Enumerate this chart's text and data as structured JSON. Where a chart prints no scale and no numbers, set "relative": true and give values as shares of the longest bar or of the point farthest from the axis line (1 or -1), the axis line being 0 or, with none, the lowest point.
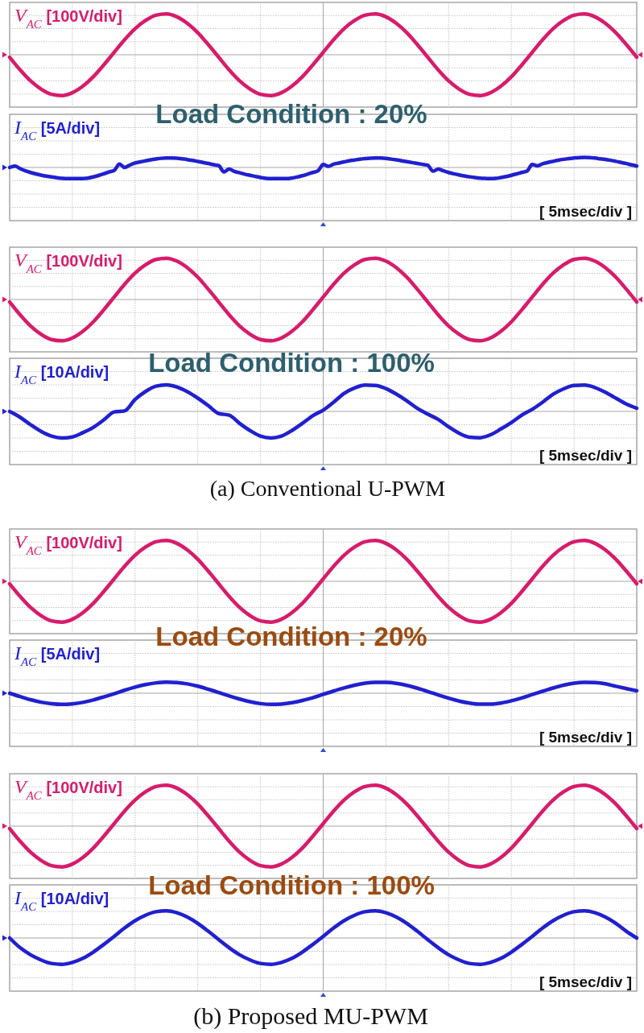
{
  "chart_data": [
    {
      "type": "line",
      "relative": true,
      "grid": true,
      "categories": [
        null,
        null,
        null,
        null,
        null,
        null,
        null,
        null,
        null,
        null,
        null,
        null,
        null,
        null,
        null,
        null,
        null,
        null,
        null,
        null,
        null,
        null,
        null,
        null,
        null,
        null,
        null,
        null,
        null,
        null,
        null,
        null,
        null,
        null,
        null,
        null,
        null,
        null,
        null,
        null,
        null,
        null,
        null,
        null,
        null,
        null,
        null,
        null,
        null,
        null,
        null,
        null,
        null,
        null,
        null,
        null,
        null,
        null,
        null,
        null,
        null
      ],
      "series": [
        {
          "name": "V$_{AC}$ [100V/div]",
          "color": "#d81b6b",
          "values": [
            -0.06,
            -0.37,
            -0.64,
            -0.84,
            -0.97,
            -1.0,
            -0.93,
            -0.77,
            -0.54,
            -0.25,
            0.06,
            0.37,
            0.64,
            0.84,
            0.97,
            1.0,
            0.93,
            0.77,
            0.54,
            0.25,
            -0.06,
            -0.37,
            -0.64,
            -0.84,
            -0.97,
            -1.0,
            -0.93,
            -0.77,
            -0.54,
            -0.25,
            0.06,
            0.37,
            0.64,
            0.84,
            0.97,
            1.0,
            0.93,
            0.77,
            0.54,
            0.25,
            -0.06,
            -0.37,
            -0.64,
            -0.84,
            -0.97,
            -1.0,
            -0.93,
            -0.77,
            -0.54,
            -0.25,
            0.06,
            0.37,
            0.64,
            0.84,
            0.97,
            1.0,
            0.93,
            0.77,
            0.54,
            0.25,
            -0.06
          ]
        }
      ]
    },
    {
      "type": "line",
      "relative": true,
      "grid": true,
      "title": "Load Condition : 20%",
      "xlabel": "[ 5msec/div ]",
      "categories": [
        null,
        null,
        null,
        null,
        null,
        null,
        null,
        null,
        null,
        null,
        null,
        null,
        null,
        null,
        null,
        null,
        null,
        null,
        null,
        null,
        null,
        null,
        null,
        null,
        null,
        null,
        null,
        null,
        null,
        null,
        null,
        null,
        null,
        null,
        null,
        null,
        null,
        null,
        null,
        null,
        null,
        null,
        null,
        null,
        null,
        null,
        null,
        null,
        null,
        null,
        null,
        null,
        null,
        null,
        null,
        null,
        null,
        null,
        null,
        null,
        null,
        null,
        null,
        null,
        null,
        null,
        null,
        null,
        null,
        null,
        null,
        null,
        null,
        null,
        null,
        null,
        null,
        null,
        null,
        null,
        null,
        null,
        null,
        null,
        null,
        null,
        null,
        null,
        null,
        null,
        null,
        null,
        null,
        null,
        null,
        null,
        null,
        null,
        null,
        null,
        null,
        null,
        null,
        null,
        null,
        null,
        null,
        null,
        null,
        null,
        null,
        null,
        null,
        null,
        null,
        null,
        null,
        null,
        null,
        null,
        null
      ],
      "series": [
        {
          "name": "I$_{AC}$ [5A/div]",
          "color": "#2020d0",
          "values": [
            0.0,
            0.12,
            -0.1,
            -0.3,
            -0.45,
            -0.58,
            -0.68,
            -0.77,
            -0.85,
            -0.92,
            -0.97,
            -1.0,
            -1.0,
            -1.0,
            -0.99,
            -0.95,
            -0.85,
            -0.72,
            -0.57,
            -0.4,
            -0.27,
            0.3,
            0.0,
            0.22,
            0.4,
            0.5,
            0.6,
            0.69,
            0.76,
            0.82,
            0.85,
            0.85,
            0.83,
            0.77,
            0.71,
            0.63,
            0.54,
            0.45,
            0.36,
            0.25,
            0.17,
            -0.4,
            -0.15,
            -0.35,
            -0.48,
            -0.6,
            -0.7,
            -0.8,
            -0.9,
            -0.97,
            -1.0,
            -1.0,
            -1.0,
            -1.0,
            -0.95,
            -0.86,
            -0.74,
            -0.6,
            -0.45,
            -0.3,
            0.27,
            0.1,
            0.3,
            0.4,
            0.5,
            0.6,
            0.67,
            0.74,
            0.79,
            0.83,
            0.85,
            0.84,
            0.81,
            0.75,
            0.68,
            0.6,
            0.52,
            0.44,
            0.36,
            0.28,
            0.2,
            -0.33,
            -0.15,
            -0.3,
            -0.45,
            -0.57,
            -0.67,
            -0.76,
            -0.84,
            -0.9,
            -0.95,
            -0.98,
            -1.0,
            -0.98,
            -0.9,
            -0.81,
            -0.7,
            -0.58,
            -0.45,
            -0.33,
            0.27,
            0.15,
            0.33,
            0.45,
            0.55,
            0.65,
            0.73,
            0.8,
            0.85,
            0.89,
            0.9,
            0.88,
            0.84,
            0.78,
            0.72,
            0.64,
            0.55,
            0.45,
            0.35,
            0.23,
            0.13
          ]
        }
      ]
    },
    {
      "type": "line",
      "relative": true,
      "grid": true,
      "categories": [
        null,
        null,
        null,
        null,
        null,
        null,
        null,
        null,
        null,
        null,
        null,
        null,
        null,
        null,
        null,
        null,
        null,
        null,
        null,
        null,
        null,
        null,
        null,
        null,
        null,
        null,
        null,
        null,
        null,
        null,
        null,
        null,
        null,
        null,
        null,
        null,
        null,
        null,
        null,
        null,
        null,
        null,
        null,
        null,
        null,
        null,
        null,
        null,
        null,
        null,
        null,
        null,
        null,
        null,
        null,
        null,
        null,
        null,
        null,
        null,
        null
      ],
      "series": [
        {
          "name": "V$_{AC}$ [100V/div]",
          "color": "#d81b6b",
          "values": [
            -0.06,
            -0.37,
            -0.64,
            -0.84,
            -0.97,
            -1.0,
            -0.93,
            -0.77,
            -0.54,
            -0.25,
            0.06,
            0.37,
            0.64,
            0.84,
            0.97,
            1.0,
            0.93,
            0.77,
            0.54,
            0.25,
            -0.06,
            -0.37,
            -0.64,
            -0.84,
            -0.97,
            -1.0,
            -0.93,
            -0.77,
            -0.54,
            -0.25,
            0.06,
            0.37,
            0.64,
            0.84,
            0.97,
            1.0,
            0.93,
            0.77,
            0.54,
            0.25,
            -0.06,
            -0.37,
            -0.64,
            -0.84,
            -0.97,
            -1.0,
            -0.93,
            -0.77,
            -0.54,
            -0.25,
            0.06,
            0.37,
            0.64,
            0.84,
            0.97,
            1.0,
            0.93,
            0.77,
            0.54,
            0.25,
            -0.06
          ]
        }
      ]
    },
    {
      "type": "line",
      "relative": true,
      "grid": true,
      "title": "Load Condition : 100%",
      "xlabel": "[ 5msec/div ]",
      "annotations": [
        "(a) Conventional U-PWM"
      ],
      "categories": [
        null,
        null,
        null,
        null,
        null,
        null,
        null,
        null,
        null,
        null,
        null,
        null,
        null,
        null,
        null,
        null,
        null,
        null,
        null,
        null,
        null,
        null,
        null,
        null,
        null,
        null,
        null,
        null,
        null,
        null,
        null,
        null,
        null,
        null,
        null,
        null,
        null,
        null,
        null,
        null,
        null,
        null,
        null,
        null,
        null,
        null,
        null,
        null,
        null,
        null,
        null,
        null,
        null,
        null,
        null,
        null,
        null,
        null,
        null,
        null,
        null
      ],
      "series": [
        {
          "name": "I$_{AC}$ [10A/div]",
          "color": "#2020d0",
          "values": [
            0.0,
            -0.22,
            -0.5,
            -0.75,
            -0.93,
            -1.0,
            -0.96,
            -0.8,
            -0.6,
            -0.32,
            -0.02,
            0.02,
            0.45,
            0.75,
            0.95,
            1.0,
            0.92,
            0.74,
            0.5,
            0.22,
            -0.08,
            -0.14,
            -0.45,
            -0.72,
            -0.93,
            -1.0,
            -0.93,
            -0.72,
            -0.45,
            -0.16,
            0.05,
            0.35,
            0.68,
            0.88,
            0.99,
            0.98,
            0.86,
            0.65,
            0.4,
            0.12,
            -0.1,
            -0.3,
            -0.58,
            -0.82,
            -0.97,
            -0.99,
            -0.88,
            -0.66,
            -0.42,
            -0.14,
            0.08,
            0.35,
            0.65,
            0.85,
            0.98,
            0.99,
            0.9,
            0.72,
            0.5,
            0.28,
            0.12
          ]
        }
      ]
    },
    {
      "type": "line",
      "relative": true,
      "grid": true,
      "categories": [
        null,
        null,
        null,
        null,
        null,
        null,
        null,
        null,
        null,
        null,
        null,
        null,
        null,
        null,
        null,
        null,
        null,
        null,
        null,
        null,
        null,
        null,
        null,
        null,
        null,
        null,
        null,
        null,
        null,
        null,
        null,
        null,
        null,
        null,
        null,
        null,
        null,
        null,
        null,
        null,
        null,
        null,
        null,
        null,
        null,
        null,
        null,
        null,
        null,
        null,
        null,
        null,
        null,
        null,
        null,
        null,
        null,
        null,
        null,
        null,
        null
      ],
      "series": [
        {
          "name": "V$_{AC}$ [100V/div]",
          "color": "#d81b6b",
          "values": [
            -0.06,
            -0.37,
            -0.64,
            -0.84,
            -0.97,
            -1.0,
            -0.93,
            -0.77,
            -0.54,
            -0.25,
            0.06,
            0.37,
            0.64,
            0.84,
            0.97,
            1.0,
            0.93,
            0.77,
            0.54,
            0.25,
            -0.06,
            -0.37,
            -0.64,
            -0.84,
            -0.97,
            -1.0,
            -0.93,
            -0.77,
            -0.54,
            -0.25,
            0.06,
            0.37,
            0.64,
            0.84,
            0.97,
            1.0,
            0.93,
            0.77,
            0.54,
            0.25,
            -0.06,
            -0.37,
            -0.64,
            -0.84,
            -0.97,
            -1.0,
            -0.93,
            -0.77,
            -0.54,
            -0.25,
            0.06,
            0.37,
            0.64,
            0.84,
            0.97,
            1.0,
            0.93,
            0.77,
            0.54,
            0.25,
            -0.06
          ]
        }
      ]
    },
    {
      "type": "line",
      "relative": true,
      "grid": true,
      "title": "Load Condition : 20%",
      "xlabel": "[ 5msec/div ]",
      "categories": [
        null,
        null,
        null,
        null,
        null,
        null,
        null,
        null,
        null,
        null,
        null,
        null,
        null,
        null,
        null,
        null,
        null,
        null,
        null,
        null,
        null,
        null,
        null,
        null,
        null,
        null,
        null,
        null,
        null,
        null,
        null,
        null,
        null,
        null,
        null,
        null,
        null,
        null,
        null,
        null,
        null,
        null,
        null,
        null,
        null,
        null,
        null,
        null,
        null,
        null,
        null,
        null,
        null,
        null,
        null,
        null,
        null,
        null,
        null,
        null,
        null
      ],
      "series": [
        {
          "name": "I$_{AC}$ [5A/div]",
          "color": "#2020d0",
          "values": [
            0.0,
            -0.3,
            -0.58,
            -0.8,
            -0.94,
            -1.0,
            -0.95,
            -0.82,
            -0.6,
            -0.33,
            -0.04,
            0.27,
            0.55,
            0.78,
            0.93,
            1.0,
            0.96,
            0.84,
            0.63,
            0.36,
            0.07,
            -0.24,
            -0.52,
            -0.76,
            -0.93,
            -1.0,
            -0.97,
            -0.85,
            -0.65,
            -0.4,
            -0.1,
            0.2,
            0.48,
            0.72,
            0.9,
            0.98,
            0.97,
            0.88,
            0.7,
            0.45,
            0.16,
            -0.15,
            -0.44,
            -0.7,
            -0.88,
            -0.98,
            -0.98,
            -0.88,
            -0.68,
            -0.42,
            -0.12,
            0.18,
            0.47,
            0.72,
            0.9,
            0.98,
            0.96,
            0.85,
            0.62,
            0.42,
            0.22
          ]
        }
      ]
    },
    {
      "type": "line",
      "relative": true,
      "grid": true,
      "categories": [
        null,
        null,
        null,
        null,
        null,
        null,
        null,
        null,
        null,
        null,
        null,
        null,
        null,
        null,
        null,
        null,
        null,
        null,
        null,
        null,
        null,
        null,
        null,
        null,
        null,
        null,
        null,
        null,
        null,
        null,
        null,
        null,
        null,
        null,
        null,
        null,
        null,
        null,
        null,
        null,
        null,
        null,
        null,
        null,
        null,
        null,
        null,
        null,
        null,
        null,
        null,
        null,
        null,
        null,
        null,
        null,
        null,
        null,
        null,
        null,
        null
      ],
      "series": [
        {
          "name": "V$_{AC}$ [100V/div]",
          "color": "#d81b6b",
          "values": [
            -0.06,
            -0.37,
            -0.64,
            -0.84,
            -0.97,
            -1.0,
            -0.93,
            -0.77,
            -0.54,
            -0.25,
            0.06,
            0.37,
            0.64,
            0.84,
            0.97,
            1.0,
            0.93,
            0.77,
            0.54,
            0.25,
            -0.06,
            -0.37,
            -0.64,
            -0.84,
            -0.97,
            -1.0,
            -0.93,
            -0.77,
            -0.54,
            -0.25,
            0.06,
            0.37,
            0.64,
            0.84,
            0.97,
            1.0,
            0.93,
            0.77,
            0.54,
            0.25,
            -0.06,
            -0.37,
            -0.64,
            -0.84,
            -0.97,
            -1.0,
            -0.93,
            -0.77,
            -0.54,
            -0.25,
            0.06,
            0.37,
            0.64,
            0.84,
            0.97,
            1.0,
            0.93,
            0.77,
            0.54,
            0.25,
            -0.06
          ]
        }
      ]
    },
    {
      "type": "line",
      "relative": true,
      "grid": true,
      "title": "Load Condition : 100%",
      "xlabel": "[ 5msec/div ]",
      "annotations": [
        "(b) Proposed MU-PWM"
      ],
      "categories": [
        null,
        null,
        null,
        null,
        null,
        null,
        null,
        null,
        null,
        null,
        null,
        null,
        null,
        null,
        null,
        null,
        null,
        null,
        null,
        null,
        null,
        null,
        null,
        null,
        null,
        null,
        null,
        null,
        null,
        null,
        null,
        null,
        null,
        null,
        null,
        null,
        null,
        null,
        null,
        null,
        null,
        null,
        null,
        null,
        null,
        null,
        null,
        null,
        null,
        null,
        null,
        null,
        null,
        null,
        null,
        null,
        null,
        null,
        null,
        null,
        null
      ],
      "series": [
        {
          "name": "I$_{AC}$ [10A/div]",
          "color": "#2020d0",
          "values": [
            0.0,
            -0.36,
            -0.62,
            -0.81,
            -0.94,
            -0.97,
            -0.9,
            -0.75,
            -0.52,
            -0.24,
            0.06,
            0.37,
            0.64,
            0.84,
            0.97,
            1.0,
            0.93,
            0.77,
            0.54,
            0.25,
            -0.06,
            -0.36,
            -0.62,
            -0.81,
            -0.94,
            -0.97,
            -0.9,
            -0.75,
            -0.52,
            -0.24,
            0.06,
            0.37,
            0.64,
            0.84,
            0.97,
            1.0,
            0.93,
            0.77,
            0.54,
            0.25,
            -0.06,
            -0.36,
            -0.62,
            -0.81,
            -0.94,
            -0.97,
            -0.9,
            -0.75,
            -0.52,
            -0.24,
            0.06,
            0.37,
            0.64,
            0.84,
            0.97,
            1.0,
            0.93,
            0.77,
            0.54,
            0.25,
            0.0
          ]
        }
      ]
    }
  ]
}
